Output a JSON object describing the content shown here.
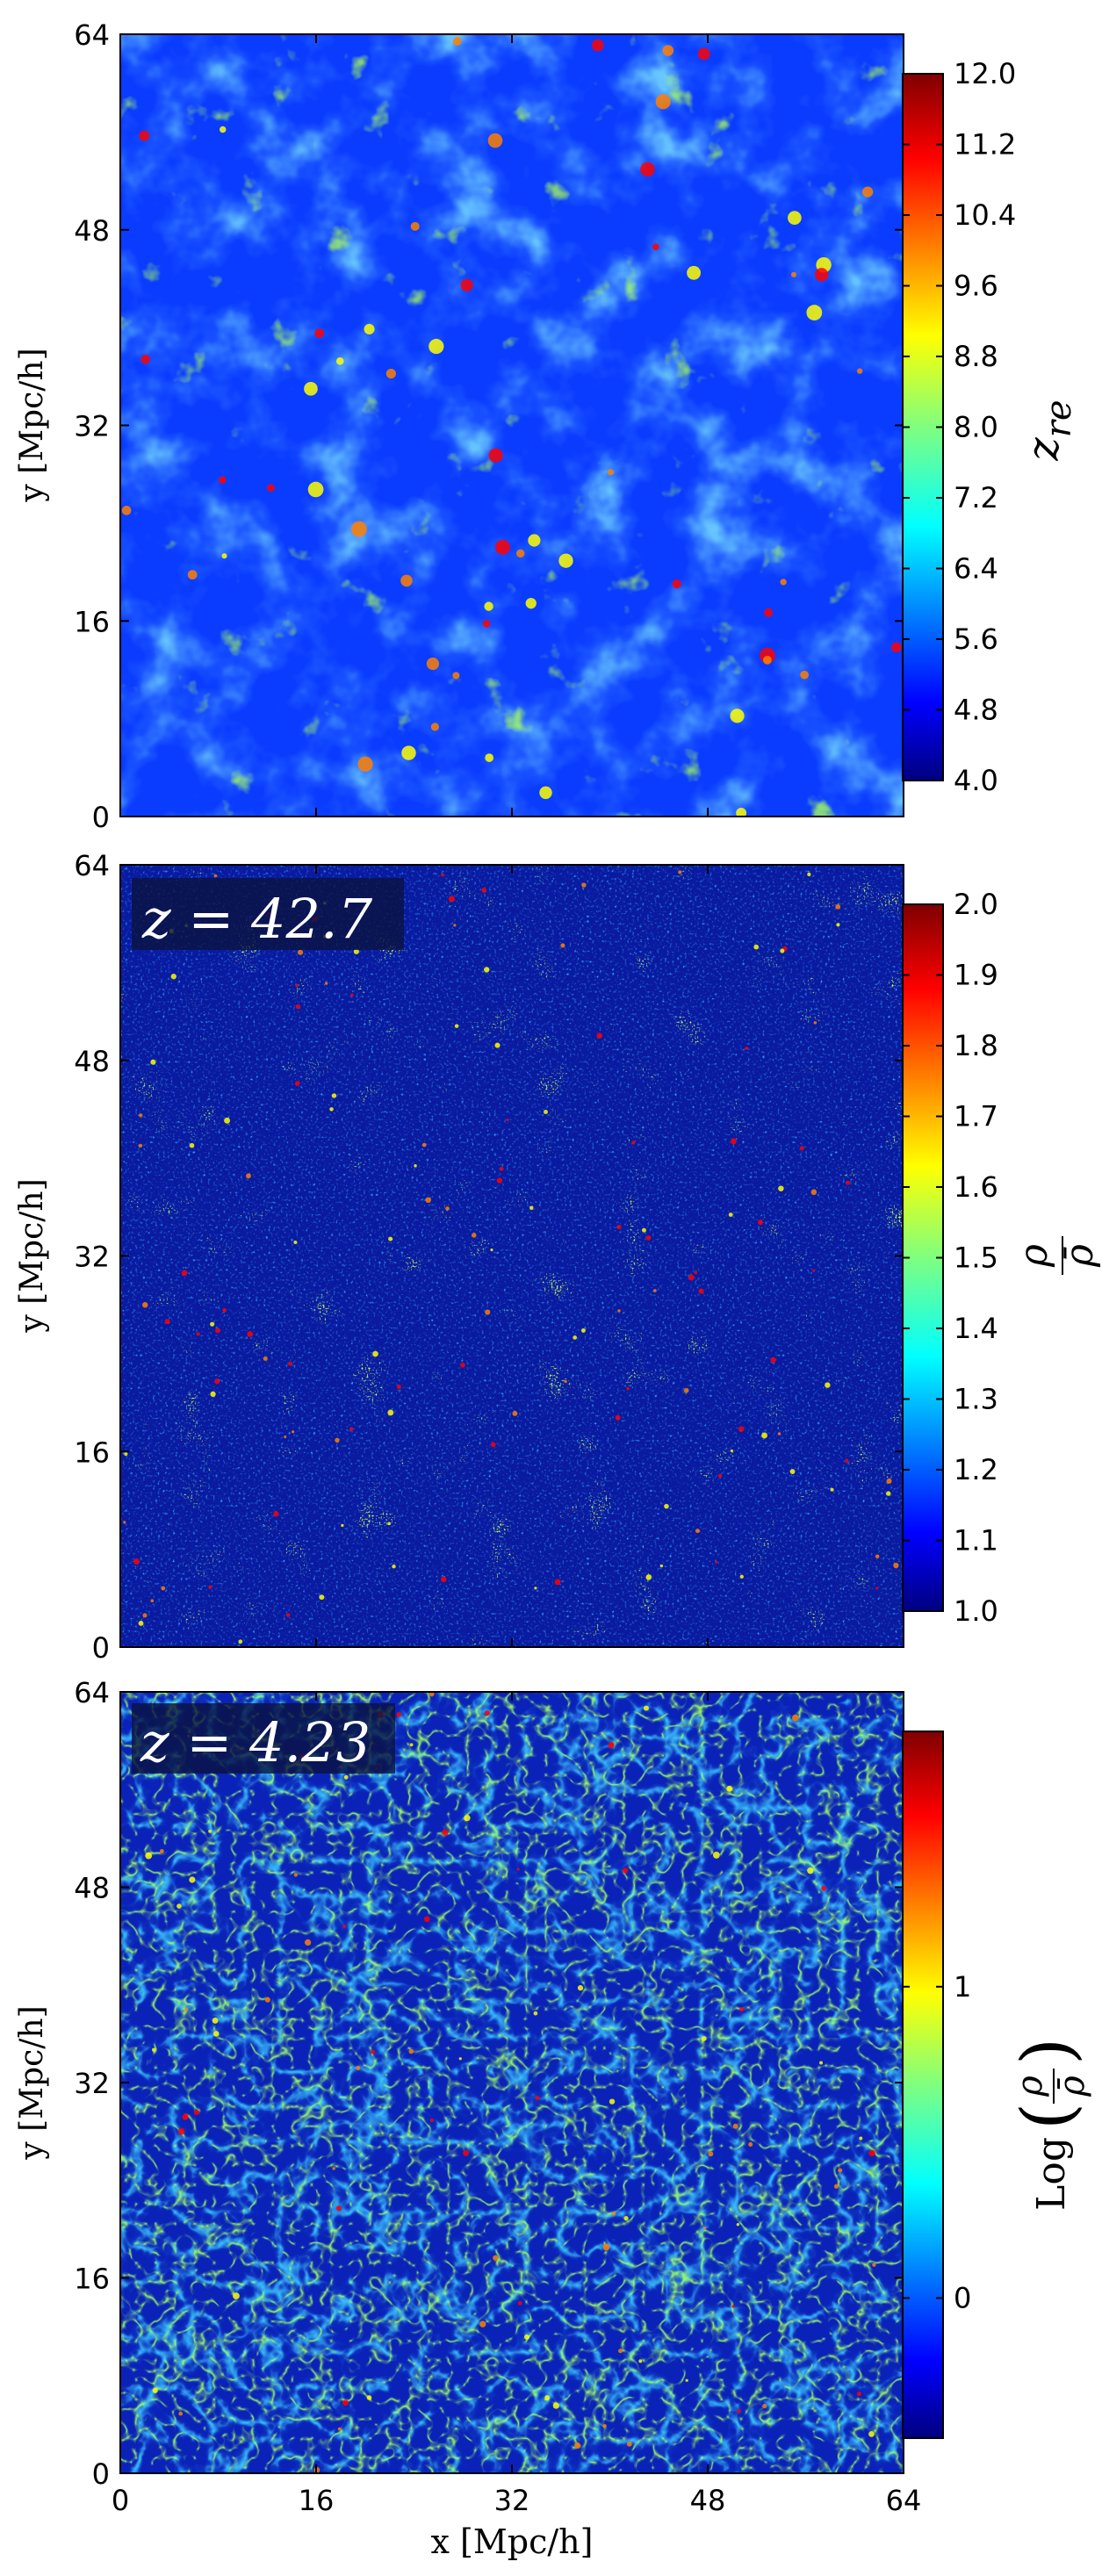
{
  "colors": {
    "jet": [
      "#00007f",
      "#0000ff",
      "#007fff",
      "#00ffff",
      "#7fff7f",
      "#ffff00",
      "#ff7f00",
      "#ff0000",
      "#7f0000"
    ]
  },
  "chart_data": [
    {
      "type": "heatmap",
      "panel": "reionization-redshift-map",
      "ylabel": "y [Mpc/h]",
      "xlabel": "",
      "xlim": [
        0,
        64
      ],
      "ylim": [
        0,
        64
      ],
      "yticks": [
        "0",
        "16",
        "32",
        "48",
        "64"
      ],
      "colorbar": {
        "label_main": "z",
        "label_sub": "re",
        "range": [
          4.0,
          12.0
        ],
        "ticks": [
          "4.0",
          "4.8",
          "5.6",
          "6.4",
          "7.2",
          "8.0",
          "8.8",
          "9.6",
          "10.4",
          "11.2",
          "12.0"
        ]
      }
    },
    {
      "type": "heatmap",
      "panel": "density-map-early",
      "annotation": "z = 42.7",
      "ylabel": "y [Mpc/h]",
      "xlabel": "",
      "xlim": [
        0,
        64
      ],
      "ylim": [
        0,
        64
      ],
      "yticks": [
        "0",
        "16",
        "32",
        "48",
        "64"
      ],
      "colorbar": {
        "label_num": "ρ",
        "label_den": "ρ̄",
        "range": [
          1.0,
          2.0
        ],
        "ticks": [
          "1.0",
          "1.1",
          "1.2",
          "1.3",
          "1.4",
          "1.5",
          "1.6",
          "1.7",
          "1.8",
          "1.9",
          "2.0"
        ]
      }
    },
    {
      "type": "heatmap",
      "panel": "density-map-late",
      "annotation": "z = 4.23",
      "ylabel": "y [Mpc/h]",
      "xlabel": "x [Mpc/h]",
      "xlim": [
        0,
        64
      ],
      "ylim": [
        0,
        64
      ],
      "xticks": [
        "0",
        "16",
        "32",
        "48",
        "64"
      ],
      "yticks": [
        "0",
        "16",
        "32",
        "48",
        "64"
      ],
      "colorbar": {
        "label_log": "Log",
        "label_num": "ρ",
        "label_den": "ρ̄",
        "range": [
          -0.45,
          1.82
        ],
        "ticks": [
          {
            "value": 0,
            "label": "0"
          },
          {
            "value": 1,
            "label": "1"
          }
        ]
      }
    }
  ]
}
